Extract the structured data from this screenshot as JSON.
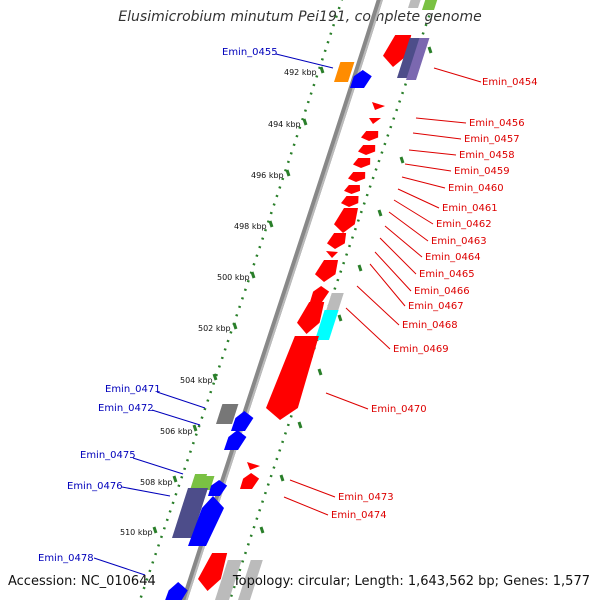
{
  "title": "Elusimicrobium minutum Pei191, complete genome",
  "footer": {
    "accession": "Accession: NC_010644",
    "summary": "Topology: circular; Length: 1,643,562 bp; Genes: 1,577"
  },
  "ticks": [
    "492 kbp",
    "494 kbp",
    "496 kbp",
    "498 kbp",
    "500 kbp",
    "502 kbp",
    "504 kbp",
    "506 kbp",
    "508 kbp",
    "510 kbp"
  ],
  "left_labels": [
    "Emin_0455",
    "Emin_0471",
    "Emin_0472",
    "Emin_0475",
    "Emin_0476",
    "Emin_0478"
  ],
  "right_labels": [
    "Emin_0454",
    "Emin_0456",
    "Emin_0457",
    "Emin_0458",
    "Emin_0459",
    "Emin_0460",
    "Emin_0461",
    "Emin_0462",
    "Emin_0463",
    "Emin_0464",
    "Emin_0465",
    "Emin_0466",
    "Emin_0467",
    "Emin_0468",
    "Emin_0469",
    "Emin_0470",
    "Emin_0473",
    "Emin_0474"
  ],
  "colors": {
    "backbone": "#888888",
    "tick": "#2a7f2a",
    "left_label": "#0000bb",
    "right_label": "#dd0000",
    "forward": "#ff0000",
    "reverse": "#0000ff",
    "orange": "#ff8c00",
    "cyan": "#00ffff",
    "dark_slate": "#4d4d8a",
    "gray": "#777777",
    "light_gray": "#bbbbbb",
    "light_green": "#7ac143",
    "purple": "#7b68b0"
  }
}
